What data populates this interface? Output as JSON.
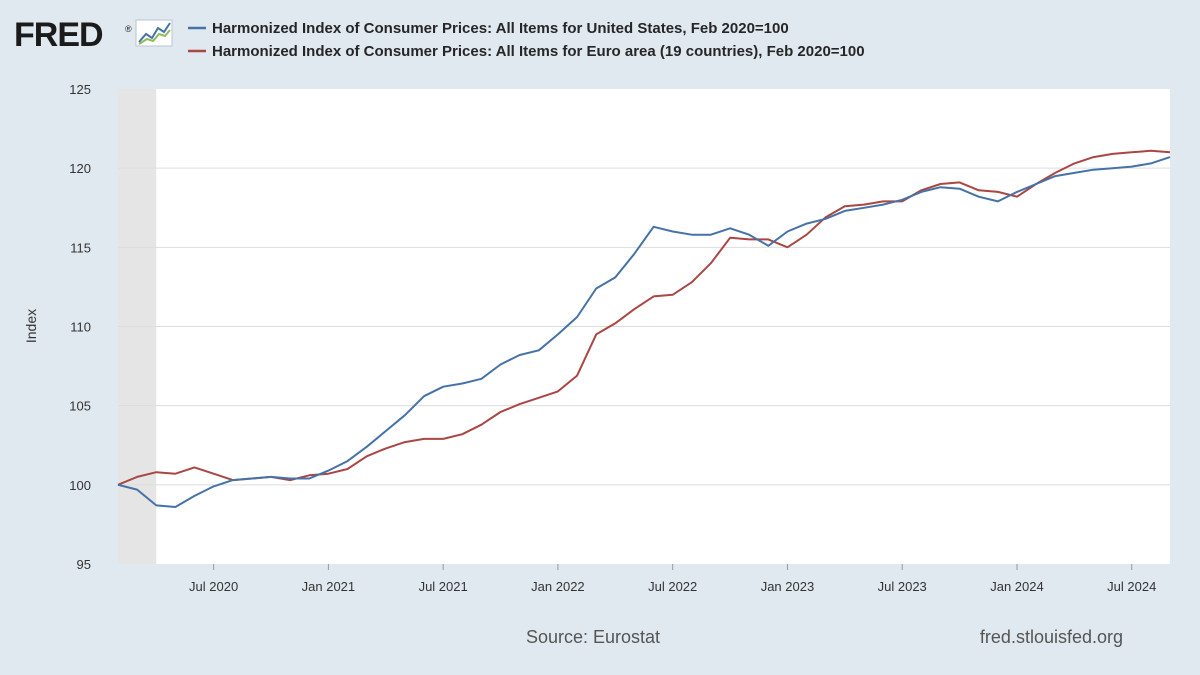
{
  "logo": {
    "text": "FRED",
    "registered": "®",
    "icon": "chart-line-icon"
  },
  "footer": {
    "source": "Source: Eurostat",
    "site": "fred.stlouisfed.org"
  },
  "colors": {
    "background": "#e1e9f0",
    "plot_bg": "#ffffff",
    "recession_shade": "#e5e5e5",
    "us": "#4572a7",
    "euro": "#aa4643",
    "grid": "#dddddd"
  },
  "chart_data": {
    "type": "line",
    "title": "",
    "xlabel": "",
    "ylabel": "Index",
    "ylim": [
      95,
      125
    ],
    "yticks": [
      95,
      100,
      105,
      110,
      115,
      120,
      125
    ],
    "xticks": [
      "Jul 2020",
      "Jan 2021",
      "Jul 2021",
      "Jan 2022",
      "Jul 2022",
      "Jan 2023",
      "Jul 2023",
      "Jan 2024",
      "Jul 2024"
    ],
    "xtick_dates": [
      "2020-07",
      "2021-01",
      "2021-07",
      "2022-01",
      "2022-07",
      "2023-01",
      "2023-07",
      "2024-01",
      "2024-07"
    ],
    "x_range": [
      "2020-02",
      "2024-09"
    ],
    "recession": {
      "start": "2020-02",
      "end": "2020-04"
    },
    "grid": true,
    "legend_position": "top",
    "x": [
      "2020-02",
      "2020-03",
      "2020-04",
      "2020-05",
      "2020-06",
      "2020-07",
      "2020-08",
      "2020-09",
      "2020-10",
      "2020-11",
      "2020-12",
      "2021-01",
      "2021-02",
      "2021-03",
      "2021-04",
      "2021-05",
      "2021-06",
      "2021-07",
      "2021-08",
      "2021-09",
      "2021-10",
      "2021-11",
      "2021-12",
      "2022-01",
      "2022-02",
      "2022-03",
      "2022-04",
      "2022-05",
      "2022-06",
      "2022-07",
      "2022-08",
      "2022-09",
      "2022-10",
      "2022-11",
      "2022-12",
      "2023-01",
      "2023-02",
      "2023-03",
      "2023-04",
      "2023-05",
      "2023-06",
      "2023-07",
      "2023-08",
      "2023-09",
      "2023-10",
      "2023-11",
      "2023-12",
      "2024-01",
      "2024-02",
      "2024-03",
      "2024-04",
      "2024-05",
      "2024-06",
      "2024-07",
      "2024-08",
      "2024-09"
    ],
    "series": [
      {
        "name": "Harmonized Index of Consumer Prices: All Items for United States, Feb 2020=100",
        "color": "#4572a7",
        "values": [
          100.0,
          99.7,
          98.7,
          98.6,
          99.3,
          99.9,
          100.3,
          100.4,
          100.5,
          100.4,
          100.4,
          100.9,
          101.5,
          102.4,
          103.4,
          104.4,
          105.6,
          106.2,
          106.4,
          106.7,
          107.6,
          108.2,
          108.5,
          109.5,
          110.6,
          112.4,
          113.1,
          114.6,
          116.3,
          116.0,
          115.8,
          115.8,
          116.2,
          115.8,
          115.1,
          116.0,
          116.5,
          116.8,
          117.3,
          117.5,
          117.7,
          118.0,
          118.5,
          118.8,
          118.7,
          118.2,
          117.9,
          118.5,
          119.0,
          119.5,
          119.7,
          119.9,
          120.0,
          120.1,
          120.3,
          120.7
        ]
      },
      {
        "name": "Harmonized Index of Consumer Prices: All Items for Euro area (19 countries), Feb 2020=100",
        "color": "#aa4643",
        "values": [
          100.0,
          100.5,
          100.8,
          100.7,
          101.1,
          100.7,
          100.3,
          100.4,
          100.5,
          100.3,
          100.6,
          100.7,
          101.0,
          101.8,
          102.3,
          102.7,
          102.9,
          102.9,
          103.2,
          103.8,
          104.6,
          105.1,
          105.5,
          105.9,
          106.9,
          109.5,
          110.2,
          111.1,
          111.9,
          112.0,
          112.8,
          114.0,
          115.6,
          115.5,
          115.5,
          115.0,
          115.8,
          116.9,
          117.6,
          117.7,
          117.9,
          117.9,
          118.6,
          119.0,
          119.1,
          118.6,
          118.5,
          118.2,
          119.0,
          119.7,
          120.3,
          120.7,
          120.9,
          121.0,
          121.1,
          121.0
        ]
      }
    ]
  }
}
